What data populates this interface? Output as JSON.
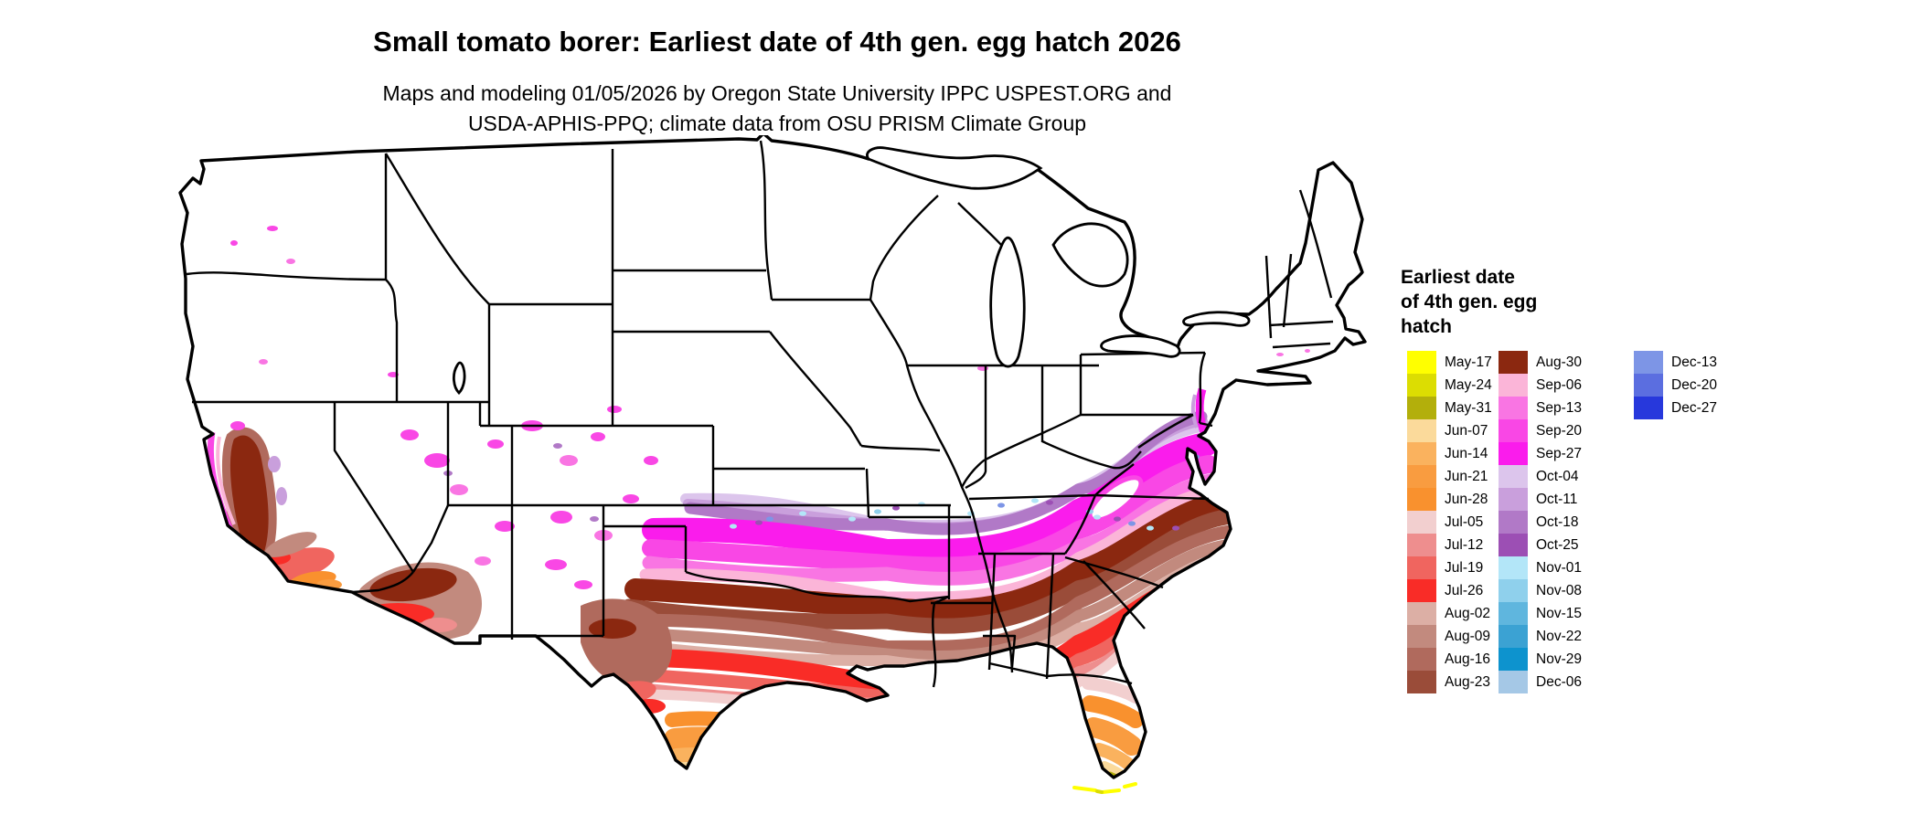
{
  "header": {
    "title": "Small tomato borer: Earliest date of 4th gen. egg hatch 2026",
    "subtitle_line1": "Maps and modeling 01/05/2026 by Oregon State University IPPC USPEST.ORG and",
    "subtitle_line2": "USDA-APHIS-PPQ; climate data from OSU PRISM Climate Group"
  },
  "legend": {
    "title_lines": [
      "Earliest date",
      "of 4th gen. egg",
      "hatch"
    ],
    "columns": [
      [
        {
          "label": "May-17",
          "color": "#FFFF00"
        },
        {
          "label": "May-24",
          "color": "#DCDD02"
        },
        {
          "label": "May-31",
          "color": "#B3AF0B"
        },
        {
          "label": "Jun-07",
          "color": "#FBDA9B"
        },
        {
          "label": "Jun-14",
          "color": "#FAB25E"
        },
        {
          "label": "Jun-21",
          "color": "#F99C40"
        },
        {
          "label": "Jun-28",
          "color": "#F9912E"
        },
        {
          "label": "Jul-05",
          "color": "#F2CFCF"
        },
        {
          "label": "Jul-12",
          "color": "#EE8E8E"
        },
        {
          "label": "Jul-19",
          "color": "#F0655F"
        },
        {
          "label": "Jul-26",
          "color": "#F92C27"
        },
        {
          "label": "Aug-02",
          "color": "#DCAFA5"
        },
        {
          "label": "Aug-09",
          "color": "#C28A7E"
        },
        {
          "label": "Aug-16",
          "color": "#B06A5D"
        },
        {
          "label": "Aug-23",
          "color": "#9A4C39"
        }
      ],
      [
        {
          "label": "Aug-30",
          "color": "#8B2810"
        },
        {
          "label": "Sep-06",
          "color": "#FBB5D8"
        },
        {
          "label": "Sep-13",
          "color": "#F975E3"
        },
        {
          "label": "Sep-20",
          "color": "#F947E5"
        },
        {
          "label": "Sep-27",
          "color": "#FA1CEC"
        },
        {
          "label": "Oct-04",
          "color": "#DCC5EC"
        },
        {
          "label": "Oct-11",
          "color": "#C99FDC"
        },
        {
          "label": "Oct-18",
          "color": "#B179C7"
        },
        {
          "label": "Oct-25",
          "color": "#9C4FB4"
        },
        {
          "label": "Nov-01",
          "color": "#B3E6F8"
        },
        {
          "label": "Nov-08",
          "color": "#8FD0EC"
        },
        {
          "label": "Nov-15",
          "color": "#5FB6DE"
        },
        {
          "label": "Nov-22",
          "color": "#3BA2D3"
        },
        {
          "label": "Nov-29",
          "color": "#0D93CE"
        },
        {
          "label": "Dec-06",
          "color": "#A5C8E6"
        }
      ],
      [
        {
          "label": "Dec-13",
          "color": "#7D95E6"
        },
        {
          "label": "Dec-20",
          "color": "#5B6EE0"
        },
        {
          "label": "Dec-27",
          "color": "#2738DC"
        }
      ]
    ]
  },
  "chart_data": {
    "type": "heatmap",
    "title": "Small tomato borer: Earliest date of 4th gen. egg hatch 2026",
    "subtitle": "Maps and modeling 01/05/2026 by Oregon State University IPPC USPEST.ORG and USDA-APHIS-PPQ; climate data from OSU PRISM Climate Group",
    "legend_title": "Earliest date of 4th gen. egg hatch",
    "map_region": "Contiguous United States with state boundaries",
    "scale_weekly_dates": [
      "May-17",
      "May-24",
      "May-31",
      "Jun-07",
      "Jun-14",
      "Jun-21",
      "Jun-28",
      "Jul-05",
      "Jul-12",
      "Jul-19",
      "Jul-26",
      "Aug-02",
      "Aug-09",
      "Aug-16",
      "Aug-23",
      "Aug-30",
      "Sep-06",
      "Sep-13",
      "Sep-20",
      "Sep-27",
      "Oct-04",
      "Oct-11",
      "Oct-18",
      "Oct-25",
      "Nov-01",
      "Nov-08",
      "Nov-15",
      "Nov-22",
      "Nov-29",
      "Dec-06",
      "Dec-13",
      "Dec-20",
      "Dec-27"
    ],
    "scale_colors": [
      "#FFFF00",
      "#DCDD02",
      "#B3AF0B",
      "#FBDA9B",
      "#FAB25E",
      "#F99C40",
      "#F9912E",
      "#F2CFCF",
      "#EE8E8E",
      "#F0655F",
      "#F92C27",
      "#DCAFA5",
      "#C28A7E",
      "#B06A5D",
      "#9A4C39",
      "#8B2810",
      "#FBB5D8",
      "#F975E3",
      "#F947E5",
      "#FA1CEC",
      "#DCC5EC",
      "#C99FDC",
      "#B179C7",
      "#9C4FB4",
      "#B3E6F8",
      "#8FD0EC",
      "#5FB6DE",
      "#3BA2D3",
      "#0D93CE",
      "#A5C8E6",
      "#7D95E6",
      "#5B6EE0",
      "#2738DC"
    ],
    "visible_patterns": [
      "Northern tier of states is white (no 4th generation egg hatch shown)",
      "Purple then magenta (Oct/Sep dates) band across Kansas, Missouri, Illinois, Indiana, Ohio, Kentucky, Virginia and the mid-Atlantic coast",
      "Dark maroon Aug-30 band across Oklahoma, Arkansas, Tennessee, the Carolinas and Virginia",
      "Brown and dusty-pink Aug dates across north Texas and the mid-South",
      "Bright red Jul-19/Jul-26 band across central Texas, Louisiana, Mississippi, Alabama, Georgia",
      "Orange Jun dates in south Texas and the central Florida peninsula",
      "Olive May-31 at the south Florida tip and yellow May-17/May-24 along the Florida Keys",
      "California Central Valley maroon/brown with magenta fringes; desert Southwest red/orange; scattered magenta patches across the Great Basin and Rockies"
    ]
  }
}
